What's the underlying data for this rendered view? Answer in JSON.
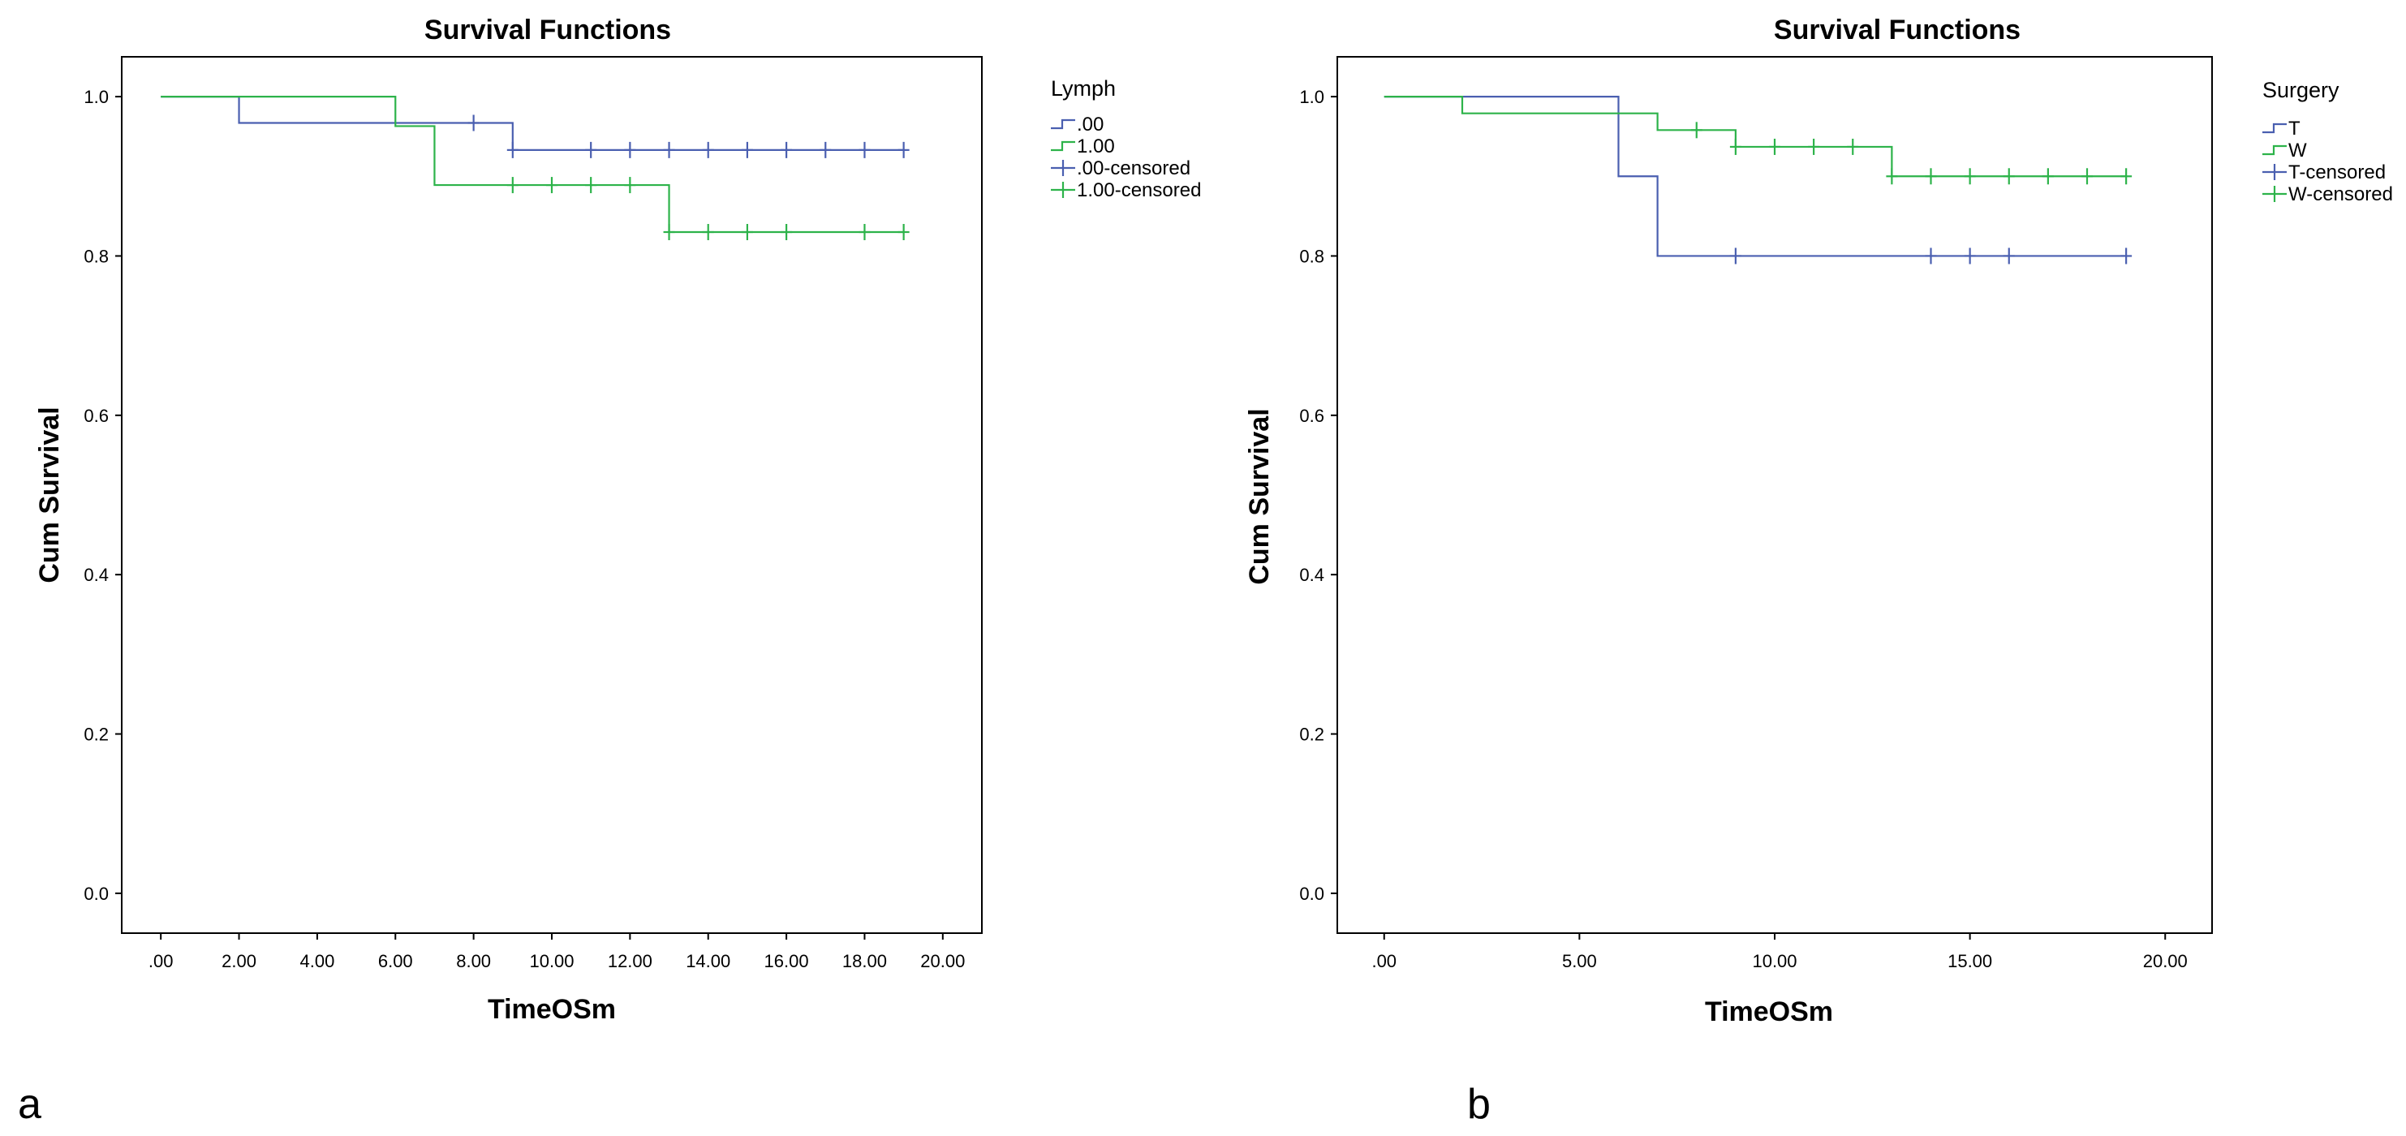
{
  "chart_data": [
    {
      "type": "line",
      "panel": "a",
      "title": "Survival Functions",
      "xlabel": "TimeOSm",
      "ylabel": "Cum Survival",
      "xlim": [
        -1,
        21
      ],
      "ylim": [
        -0.05,
        1.05
      ],
      "xticks": [
        0,
        2,
        4,
        6,
        8,
        10,
        12,
        14,
        16,
        18,
        20
      ],
      "xtick_labels": [
        ".00",
        "2.00",
        "4.00",
        "6.00",
        "8.00",
        "10.00",
        "12.00",
        "14.00",
        "16.00",
        "18.00",
        "20.00"
      ],
      "yticks": [
        0,
        0.2,
        0.4,
        0.6,
        0.8,
        1.0
      ],
      "ytick_labels": [
        "0.0",
        "0.2",
        "0.4",
        "0.6",
        "0.8",
        "1.0"
      ],
      "legend_title": "Lymph",
      "legend_labels": [
        ".00",
        "1.00",
        ".00-censored",
        "1.00-censored"
      ],
      "series": [
        {
          "name": ".00",
          "color": "#4a5fb0",
          "step_x": [
            0,
            2,
            9,
            19
          ],
          "step_y": [
            1.0,
            0.967,
            0.933,
            0.933
          ],
          "censored_x": [
            8,
            9,
            11,
            12,
            13,
            14,
            15,
            16,
            17,
            18,
            19
          ]
        },
        {
          "name": "1.00",
          "color": "#2db34a",
          "step_x": [
            0,
            6,
            7,
            13,
            19
          ],
          "step_y": [
            1.0,
            0.963,
            0.889,
            0.83,
            0.83
          ],
          "censored_x": [
            9,
            10,
            11,
            12,
            13,
            14,
            15,
            16,
            18,
            19
          ]
        }
      ]
    },
    {
      "type": "line",
      "panel": "b",
      "title": "Survival Functions",
      "xlabel": "TimeOSm",
      "ylabel": "Cum Survival",
      "xlim": [
        -1.2,
        21.2
      ],
      "ylim": [
        -0.05,
        1.05
      ],
      "xticks": [
        0,
        5,
        10,
        15,
        20
      ],
      "xtick_labels": [
        ".00",
        "5.00",
        "10.00",
        "15.00",
        "20.00"
      ],
      "yticks": [
        0,
        0.2,
        0.4,
        0.6,
        0.8,
        1.0
      ],
      "ytick_labels": [
        "0.0",
        "0.2",
        "0.4",
        "0.6",
        "0.8",
        "1.0"
      ],
      "legend_title": "Surgery",
      "legend_labels": [
        "T",
        "W",
        "T-censored",
        "W-censored"
      ],
      "series": [
        {
          "name": "T",
          "color": "#4a5fb0",
          "step_x": [
            0,
            6,
            7,
            19
          ],
          "step_y": [
            1.0,
            0.9,
            0.8,
            0.8
          ],
          "censored_x": [
            9,
            14,
            15,
            16,
            19
          ]
        },
        {
          "name": "W",
          "color": "#2db34a",
          "step_x": [
            0,
            2,
            7,
            9,
            13,
            19
          ],
          "step_y": [
            1.0,
            0.979,
            0.958,
            0.937,
            0.9,
            0.9
          ],
          "censored_x": [
            8,
            9,
            10,
            11,
            12,
            13,
            14,
            15,
            16,
            17,
            18,
            19
          ]
        }
      ]
    }
  ],
  "panel_labels": [
    "a",
    "b"
  ]
}
